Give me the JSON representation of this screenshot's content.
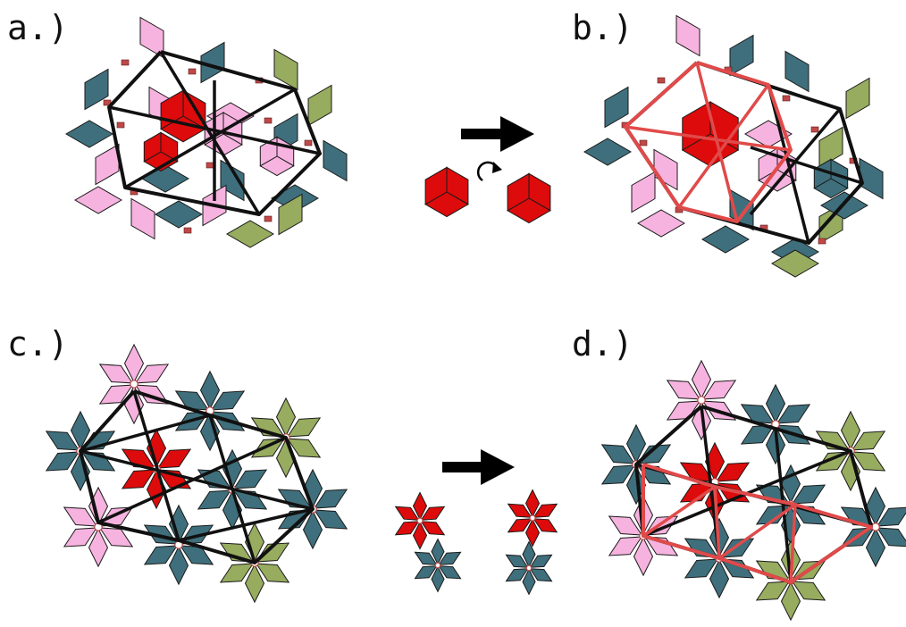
{
  "panels": {
    "a": {
      "label": "a.)"
    },
    "b": {
      "label": "b.)"
    },
    "c": {
      "label": "c.)"
    },
    "d": {
      "label": "d.)"
    }
  },
  "colors": {
    "pink": "#f7b3df",
    "teal": "#3f6f7c",
    "olive": "#97ac5f",
    "red": "#dd0b0b",
    "frame_black": "#111111",
    "frame_red": "#e04a4a",
    "linker": "#c14848"
  },
  "icons": {
    "arrow": "right-arrow-icon",
    "rotation": "rotate-cw-icon"
  }
}
